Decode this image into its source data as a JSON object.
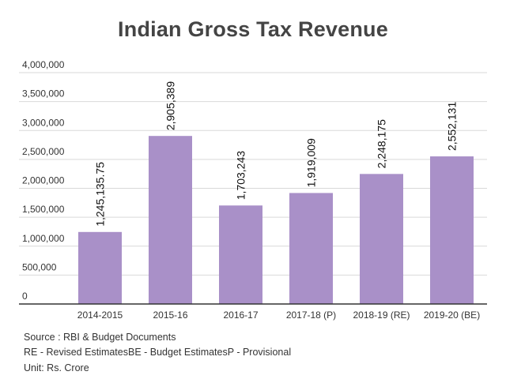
{
  "title": "Indian Gross Tax Revenue",
  "footer": {
    "source": "Source : RBI & Budget Documents",
    "notes": "RE - Revised EstimatesBE - Budget EstimatesP - Provisional",
    "unit": "Unit: Rs. Crore"
  },
  "colors": {
    "bar": "#a990c8",
    "grid": "#d9d9d9",
    "axis": "#333333"
  },
  "chart_data": {
    "type": "bar",
    "title": "Indian Gross Tax Revenue",
    "xlabel": "",
    "ylabel": "",
    "categories": [
      "2014-2015",
      "2015-16",
      "2016-17",
      "2017-18 (P)",
      "2018-19 (RE)",
      "2019-20 (BE)"
    ],
    "values": [
      1245135.75,
      2905389,
      1703243,
      1919009,
      2248175,
      2552131
    ],
    "data_labels": [
      "1,245,135.75",
      "2,905,389",
      "1,703,243",
      "1,919,009",
      "2,248,175",
      "2,552,131"
    ],
    "ylim": [
      0,
      4000000
    ],
    "yticks": [
      0,
      500000,
      1000000,
      1500000,
      2000000,
      2500000,
      3000000,
      3500000,
      4000000
    ],
    "ytick_labels": [
      "0",
      "500,000",
      "1,000,000",
      "1,500,000",
      "2,000,000",
      "2,500,000",
      "3,000,000",
      "3,500,000",
      "4,000,000"
    ],
    "grid": true,
    "legend": "none"
  }
}
